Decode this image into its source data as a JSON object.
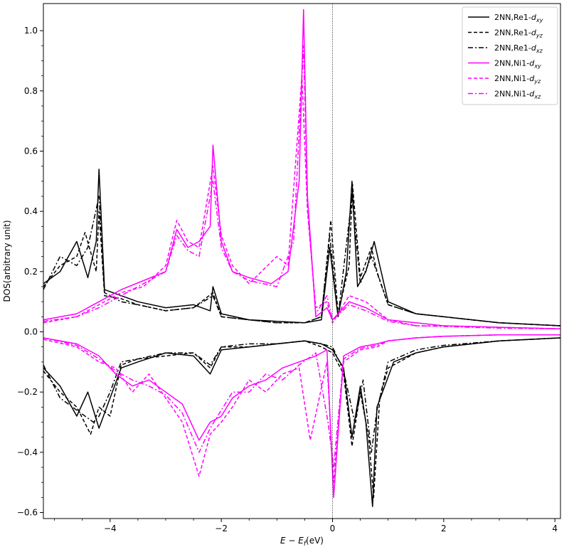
{
  "chart_data": {
    "type": "line",
    "xlabel": "E − E_f(eV)",
    "xlabel_parts": {
      "e": "E",
      "minus": " − ",
      "ef": "E",
      "ef_sub": "f",
      "unit": "(eV)"
    },
    "ylabel": "DOS(arbitrary unit)",
    "xlim": [
      -5.2,
      4.1
    ],
    "ylim": [
      -0.62,
      1.09
    ],
    "x_ticks": [
      -4,
      -2,
      0,
      2,
      4
    ],
    "x_tick_labels": [
      "−4",
      "−2",
      "0",
      "2",
      "4"
    ],
    "y_ticks": [
      -0.6,
      -0.4,
      -0.2,
      0.0,
      0.2,
      0.4,
      0.6,
      0.8,
      1.0
    ],
    "y_tick_labels": [
      "−0.6",
      "−0.4",
      "−0.2",
      "0.0",
      "0.2",
      "0.4",
      "0.6",
      "0.8",
      "1.0"
    ],
    "fermi_line_x": 0,
    "zero_line_y": 0,
    "grid": false,
    "legend_position": "top-right",
    "series": [
      {
        "name": "2NN,Re1-d_xy",
        "label_main": "2NN,Re1-",
        "label_d": "d",
        "label_sub": "xy",
        "color": "#000000",
        "dash": "solid",
        "spin": "up",
        "x": [
          -5.2,
          -4.9,
          -4.6,
          -4.4,
          -4.25,
          -4.2,
          -4.1,
          -3.8,
          -3.5,
          -3.0,
          -2.5,
          -2.2,
          -2.15,
          -2.0,
          -1.5,
          -1.0,
          -0.5,
          -0.2,
          -0.05,
          0.1,
          0.25,
          0.35,
          0.45,
          0.6,
          0.75,
          1.0,
          1.5,
          2.0,
          3.0,
          4.1
        ],
        "y": [
          0.16,
          0.2,
          0.3,
          0.18,
          0.3,
          0.54,
          0.14,
          0.12,
          0.1,
          0.08,
          0.09,
          0.07,
          0.15,
          0.06,
          0.04,
          0.035,
          0.03,
          0.04,
          0.28,
          0.05,
          0.2,
          0.5,
          0.15,
          0.2,
          0.3,
          0.1,
          0.06,
          0.05,
          0.03,
          0.02
        ]
      },
      {
        "name": "2NN,Re1-d_yz",
        "label_main": "2NN,Re1-",
        "label_d": "d",
        "label_sub": "yz",
        "color": "#000000",
        "dash": "dashed",
        "spin": "up",
        "x": [
          -5.2,
          -4.9,
          -4.6,
          -4.45,
          -4.25,
          -4.2,
          -4.1,
          -3.8,
          -3.5,
          -3.0,
          -2.5,
          -2.15,
          -2.0,
          -1.5,
          -1.0,
          -0.5,
          -0.2,
          -0.03,
          0.1,
          0.3,
          0.36,
          0.5,
          0.7,
          0.8,
          1.0,
          1.5,
          2.0,
          3.0,
          4.1
        ],
        "y": [
          0.15,
          0.22,
          0.25,
          0.33,
          0.2,
          0.4,
          0.12,
          0.11,
          0.09,
          0.07,
          0.08,
          0.13,
          0.05,
          0.04,
          0.03,
          0.03,
          0.05,
          0.37,
          0.06,
          0.22,
          0.49,
          0.18,
          0.28,
          0.2,
          0.09,
          0.06,
          0.05,
          0.03,
          0.02
        ]
      },
      {
        "name": "2NN,Re1-d_xz",
        "label_main": "2NN,Re1-",
        "label_d": "d",
        "label_sub": "xz",
        "color": "#000000",
        "dash": "dashdot",
        "spin": "up",
        "x": [
          -5.2,
          -4.9,
          -4.6,
          -4.4,
          -4.2,
          -4.1,
          -3.8,
          -3.5,
          -3.0,
          -2.5,
          -2.15,
          -2.0,
          -1.5,
          -1.0,
          -0.5,
          -0.2,
          -0.05,
          0.1,
          0.35,
          0.5,
          0.7,
          1.0,
          1.5,
          2.0,
          3.0,
          4.1
        ],
        "y": [
          0.14,
          0.25,
          0.22,
          0.28,
          0.45,
          0.13,
          0.1,
          0.09,
          0.07,
          0.08,
          0.12,
          0.05,
          0.04,
          0.03,
          0.03,
          0.05,
          0.32,
          0.05,
          0.45,
          0.16,
          0.25,
          0.09,
          0.06,
          0.05,
          0.03,
          0.02
        ]
      },
      {
        "name": "2NN,Ni1-d_xy",
        "label_main": "2NN,Ni1-",
        "label_d": "d",
        "label_sub": "xy",
        "color": "#ff00ff",
        "dash": "solid",
        "spin": "up",
        "x": [
          -5.2,
          -4.6,
          -4.2,
          -3.8,
          -3.4,
          -3.0,
          -2.8,
          -2.6,
          -2.4,
          -2.2,
          -2.15,
          -2.0,
          -1.8,
          -1.5,
          -1.1,
          -0.8,
          -0.6,
          -0.52,
          -0.45,
          -0.3,
          -0.1,
          0.0,
          0.3,
          0.6,
          1.0,
          1.5,
          2.0,
          3.0,
          4.1
        ],
        "y": [
          0.04,
          0.06,
          0.1,
          0.14,
          0.17,
          0.2,
          0.34,
          0.28,
          0.3,
          0.35,
          0.62,
          0.3,
          0.2,
          0.18,
          0.16,
          0.2,
          0.5,
          1.07,
          0.45,
          0.05,
          0.08,
          0.04,
          0.1,
          0.08,
          0.04,
          0.03,
          0.02,
          0.015,
          0.01
        ]
      },
      {
        "name": "2NN,Ni1-d_yz",
        "label_main": "2NN,Ni1-",
        "label_d": "d",
        "label_sub": "yz",
        "color": "#ff00ff",
        "dash": "dashed",
        "spin": "up",
        "x": [
          -5.2,
          -4.6,
          -4.2,
          -3.8,
          -3.4,
          -3.0,
          -2.8,
          -2.6,
          -2.4,
          -2.15,
          -2.0,
          -1.8,
          -1.5,
          -1.0,
          -0.8,
          -0.55,
          -0.45,
          -0.3,
          -0.1,
          0.0,
          0.3,
          0.6,
          1.0,
          1.5,
          2.0,
          3.0,
          4.1
        ],
        "y": [
          0.03,
          0.05,
          0.09,
          0.13,
          0.15,
          0.22,
          0.37,
          0.3,
          0.28,
          0.55,
          0.32,
          0.22,
          0.16,
          0.25,
          0.22,
          0.85,
          0.4,
          0.08,
          0.1,
          0.03,
          0.12,
          0.1,
          0.04,
          0.02,
          0.02,
          0.015,
          0.01
        ]
      },
      {
        "name": "2NN,Ni1-d_xz",
        "label_main": "2NN,Ni1-",
        "label_d": "d",
        "label_sub": "xz",
        "color": "#ff00ff",
        "dash": "dashdot",
        "spin": "up",
        "x": [
          -5.2,
          -4.6,
          -4.2,
          -3.8,
          -3.4,
          -3.0,
          -2.8,
          -2.6,
          -2.4,
          -2.15,
          -2.0,
          -1.8,
          -1.5,
          -1.0,
          -0.7,
          -0.52,
          -0.45,
          -0.3,
          -0.1,
          0.0,
          0.3,
          0.6,
          1.0,
          1.5,
          2.0,
          3.0,
          4.1
        ],
        "y": [
          0.035,
          0.05,
          0.08,
          0.12,
          0.16,
          0.2,
          0.32,
          0.27,
          0.25,
          0.5,
          0.28,
          0.2,
          0.17,
          0.15,
          0.3,
          0.95,
          0.42,
          0.06,
          0.12,
          0.04,
          0.09,
          0.07,
          0.035,
          0.02,
          0.018,
          0.012,
          0.01
        ]
      },
      {
        "name": "2NN,Re1-d_xy (spin down)",
        "color": "#000000",
        "dash": "solid",
        "spin": "down",
        "x": [
          -5.2,
          -4.9,
          -4.6,
          -4.4,
          -4.2,
          -4.0,
          -3.8,
          -3.5,
          -3.0,
          -2.5,
          -2.2,
          -2.0,
          -1.5,
          -1.0,
          -0.5,
          -0.2,
          0.0,
          0.2,
          0.35,
          0.5,
          0.6,
          0.72,
          0.8,
          0.9,
          1.1,
          1.5,
          2.0,
          3.0,
          4.1
        ],
        "y": [
          -0.12,
          -0.18,
          -0.28,
          -0.2,
          -0.32,
          -0.22,
          -0.12,
          -0.1,
          -0.07,
          -0.08,
          -0.14,
          -0.06,
          -0.05,
          -0.04,
          -0.03,
          -0.04,
          -0.06,
          -0.12,
          -0.35,
          -0.18,
          -0.3,
          -0.58,
          -0.25,
          -0.2,
          -0.1,
          -0.07,
          -0.05,
          -0.03,
          -0.02
        ]
      },
      {
        "name": "2NN,Re1-d_yz (spin down)",
        "color": "#000000",
        "dash": "dashed",
        "spin": "down",
        "x": [
          -5.2,
          -4.9,
          -4.6,
          -4.35,
          -4.2,
          -4.0,
          -3.8,
          -3.5,
          -3.0,
          -2.5,
          -2.2,
          -2.0,
          -1.5,
          -1.0,
          -0.5,
          -0.2,
          0.0,
          0.2,
          0.35,
          0.5,
          0.65,
          0.74,
          0.85,
          1.0,
          1.5,
          2.0,
          3.0,
          4.1
        ],
        "y": [
          -0.13,
          -0.2,
          -0.25,
          -0.34,
          -0.25,
          -0.28,
          -0.11,
          -0.09,
          -0.08,
          -0.07,
          -0.12,
          -0.05,
          -0.05,
          -0.04,
          -0.03,
          -0.05,
          -0.07,
          -0.14,
          -0.38,
          -0.2,
          -0.35,
          -0.55,
          -0.22,
          -0.12,
          -0.07,
          -0.05,
          -0.03,
          -0.02
        ]
      },
      {
        "name": "2NN,Re1-d_xz (spin down)",
        "color": "#000000",
        "dash": "dashdot",
        "spin": "down",
        "x": [
          -5.2,
          -4.9,
          -4.6,
          -4.3,
          -4.2,
          -4.0,
          -3.8,
          -3.5,
          -3.0,
          -2.5,
          -2.2,
          -2.0,
          -1.5,
          -1.0,
          -0.5,
          -0.2,
          0.0,
          0.2,
          0.4,
          0.55,
          0.7,
          0.8,
          1.0,
          1.5,
          2.0,
          3.0,
          4.1
        ],
        "y": [
          -0.11,
          -0.22,
          -0.26,
          -0.3,
          -0.28,
          -0.2,
          -0.1,
          -0.09,
          -0.07,
          -0.07,
          -0.11,
          -0.05,
          -0.04,
          -0.04,
          -0.03,
          -0.04,
          -0.05,
          -0.13,
          -0.3,
          -0.16,
          -0.4,
          -0.26,
          -0.1,
          -0.06,
          -0.045,
          -0.03,
          -0.02
        ]
      },
      {
        "name": "2NN,Ni1-d_xy (spin down)",
        "color": "#ff00ff",
        "dash": "solid",
        "spin": "down",
        "x": [
          -5.2,
          -4.6,
          -4.2,
          -3.9,
          -3.6,
          -3.3,
          -3.0,
          -2.7,
          -2.4,
          -2.2,
          -2.0,
          -1.8,
          -1.5,
          -1.2,
          -0.9,
          -0.6,
          -0.3,
          -0.1,
          0.02,
          0.2,
          0.5,
          0.8,
          1.0,
          1.5,
          2.0,
          3.0,
          4.1
        ],
        "y": [
          -0.02,
          -0.04,
          -0.08,
          -0.14,
          -0.18,
          -0.16,
          -0.2,
          -0.24,
          -0.36,
          -0.3,
          -0.28,
          -0.22,
          -0.18,
          -0.16,
          -0.12,
          -0.1,
          -0.08,
          -0.06,
          -0.55,
          -0.08,
          -0.05,
          -0.04,
          -0.03,
          -0.02,
          -0.015,
          -0.01,
          -0.01
        ]
      },
      {
        "name": "2NN,Ni1-d_yz (spin down)",
        "color": "#ff00ff",
        "dash": "dashed",
        "spin": "down",
        "x": [
          -5.2,
          -4.6,
          -4.2,
          -3.9,
          -3.6,
          -3.3,
          -3.0,
          -2.7,
          -2.4,
          -2.2,
          -2.0,
          -1.8,
          -1.5,
          -1.2,
          -0.9,
          -0.6,
          -0.4,
          -0.1,
          0.02,
          0.2,
          0.5,
          0.8,
          1.0,
          1.5,
          2.0,
          3.0,
          4.1
        ],
        "y": [
          -0.025,
          -0.05,
          -0.1,
          -0.12,
          -0.2,
          -0.14,
          -0.22,
          -0.3,
          -0.48,
          -0.34,
          -0.3,
          -0.25,
          -0.16,
          -0.2,
          -0.14,
          -0.12,
          -0.36,
          -0.1,
          -0.5,
          -0.1,
          -0.06,
          -0.05,
          -0.03,
          -0.02,
          -0.015,
          -0.01,
          -0.01
        ]
      },
      {
        "name": "2NN,Ni1-d_xz (spin down)",
        "color": "#ff00ff",
        "dash": "dashdot",
        "spin": "down",
        "x": [
          -5.2,
          -4.6,
          -4.2,
          -3.9,
          -3.6,
          -3.3,
          -3.0,
          -2.7,
          -2.4,
          -2.2,
          -2.0,
          -1.8,
          -1.5,
          -1.2,
          -0.9,
          -0.6,
          -0.3,
          -0.08,
          0.02,
          0.2,
          0.5,
          0.8,
          1.0,
          1.5,
          2.0,
          3.0,
          4.1
        ],
        "y": [
          -0.02,
          -0.045,
          -0.09,
          -0.13,
          -0.16,
          -0.18,
          -0.21,
          -0.27,
          -0.4,
          -0.32,
          -0.26,
          -0.2,
          -0.2,
          -0.14,
          -0.16,
          -0.11,
          -0.07,
          -0.3,
          -0.45,
          -0.09,
          -0.055,
          -0.045,
          -0.03,
          -0.02,
          -0.015,
          -0.01,
          -0.01
        ]
      }
    ]
  }
}
